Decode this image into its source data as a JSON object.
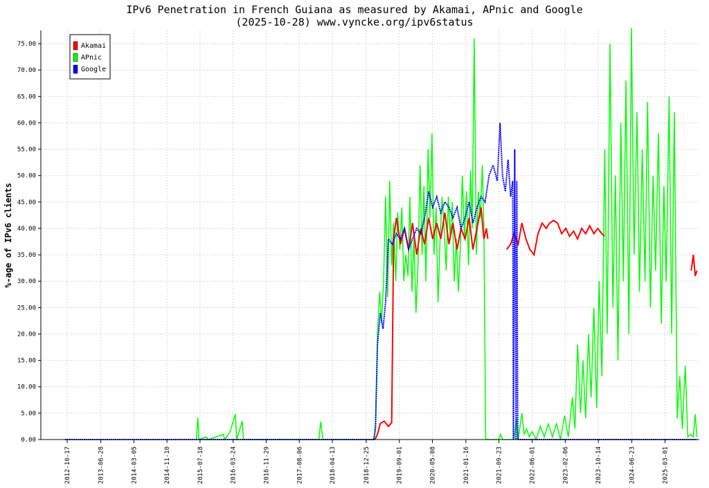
{
  "chart_data": {
    "type": "line",
    "title": "IPv6 Penetration in French Guiana as measured by Akamai, APnic and Google",
    "subtitle": "(2025-10-28) www.vyncke.org/ipv6status",
    "ylabel": "%-age of IPv6 clients",
    "xlabel": "",
    "ylim": [
      0,
      77.5
    ],
    "xlim": [
      "2012-04-01",
      "2025-11-15"
    ],
    "grid": true,
    "legend_position": "top-left",
    "y_ticks": [
      "0.00",
      "5.00",
      "10.00",
      "15.00",
      "20.00",
      "25.00",
      "30.00",
      "35.00",
      "40.00",
      "45.00",
      "50.00",
      "55.00",
      "60.00",
      "65.00",
      "70.00",
      "75.00"
    ],
    "x_ticks": [
      "2012-10-17",
      "2013-06-28",
      "2014-03-05",
      "2014-11-10",
      "2015-07-18",
      "2016-03-24",
      "2016-11-29",
      "2017-08-06",
      "2018-04-13",
      "2018-12-25",
      "2019-09-01",
      "2020-05-08",
      "2021-01-16",
      "2021-09-23",
      "2022-06-01",
      "2023-02-06",
      "2023-10-14",
      "2024-06-23",
      "2025-03-01"
    ],
    "series": [
      {
        "name": "Akamai",
        "color": "#ff0000",
        "points": [
          [
            "2019-03-01",
            0.0
          ],
          [
            "2019-03-20",
            1.0
          ],
          [
            "2019-04-10",
            3.0
          ],
          [
            "2019-05-10",
            3.5
          ],
          [
            "2019-06-10",
            2.5
          ],
          [
            "2019-07-05",
            3.2
          ],
          [
            "2019-07-20",
            38.0
          ],
          [
            "2019-08-10",
            42.0
          ],
          [
            "2019-09-10",
            37.0
          ],
          [
            "2019-10-10",
            40.0
          ],
          [
            "2019-11-10",
            36.0
          ],
          [
            "2019-12-10",
            41.0
          ],
          [
            "2020-01-10",
            35.0
          ],
          [
            "2020-02-10",
            40.0
          ],
          [
            "2020-03-10",
            37.0
          ],
          [
            "2020-04-10",
            42.0
          ],
          [
            "2020-05-10",
            38.0
          ],
          [
            "2020-06-10",
            41.0
          ],
          [
            "2020-07-10",
            38.0
          ],
          [
            "2020-08-10",
            43.0
          ],
          [
            "2020-09-10",
            37.0
          ],
          [
            "2020-10-10",
            41.0
          ],
          [
            "2020-11-10",
            36.0
          ],
          [
            "2020-12-10",
            40.0
          ],
          [
            "2021-01-10",
            38.0
          ],
          [
            "2021-02-10",
            42.0
          ],
          [
            "2021-03-10",
            36.0
          ],
          [
            "2021-04-10",
            40.0
          ],
          [
            "2021-05-10",
            44.0
          ],
          [
            "2021-06-01",
            38.0
          ],
          [
            "2021-06-20",
            40.0
          ],
          [
            "2021-07-01",
            38.0
          ],
          [
            "2021-11-20",
            36.0
          ],
          [
            "2021-12-20",
            37.0
          ],
          [
            "2022-01-15",
            39.0
          ],
          [
            "2022-02-15",
            37.0
          ],
          [
            "2022-03-15",
            41.0
          ],
          [
            "2022-04-15",
            38.0
          ],
          [
            "2022-05-15",
            36.0
          ],
          [
            "2022-06-15",
            35.0
          ],
          [
            "2022-07-15",
            39.0
          ],
          [
            "2022-08-15",
            41.0
          ],
          [
            "2022-09-15",
            40.0
          ],
          [
            "2022-10-10",
            41.0
          ],
          [
            "2022-11-10",
            41.5
          ],
          [
            "2022-12-10",
            41.0
          ],
          [
            "2023-01-10",
            39.0
          ],
          [
            "2023-02-10",
            40.0
          ],
          [
            "2023-03-10",
            38.5
          ],
          [
            "2023-04-10",
            39.5
          ],
          [
            "2023-05-10",
            38.0
          ],
          [
            "2023-06-10",
            40.0
          ],
          [
            "2023-07-10",
            39.0
          ],
          [
            "2023-08-10",
            40.5
          ],
          [
            "2023-09-10",
            39.0
          ],
          [
            "2023-10-10",
            40.0
          ],
          [
            "2023-11-10",
            39.0
          ],
          [
            "2023-11-30",
            38.5
          ],
          [
            "2025-09-15",
            32.0
          ],
          [
            "2025-10-01",
            35.0
          ],
          [
            "2025-10-15",
            31.0
          ],
          [
            "2025-10-28",
            32.0
          ]
        ]
      },
      {
        "name": "APnic",
        "color": "#00ff00",
        "points": [
          [
            "2015-06-20",
            0.0
          ],
          [
            "2015-07-01",
            4.2
          ],
          [
            "2015-07-10",
            0.0
          ],
          [
            "2015-09-01",
            0.5
          ],
          [
            "2015-09-20",
            0.0
          ],
          [
            "2016-01-10",
            1.0
          ],
          [
            "2016-01-20",
            0.0
          ],
          [
            "2016-03-01",
            1.5
          ],
          [
            "2016-04-10",
            4.8
          ],
          [
            "2016-04-20",
            0.0
          ],
          [
            "2016-06-01",
            3.5
          ],
          [
            "2016-06-10",
            0.0
          ],
          [
            "2018-01-01",
            0.0
          ],
          [
            "2018-01-15",
            3.4
          ],
          [
            "2018-02-01",
            0.0
          ],
          [
            "2019-02-20",
            0.0
          ],
          [
            "2019-03-05",
            3.0
          ],
          [
            "2019-03-20",
            20.0
          ],
          [
            "2019-04-05",
            28.0
          ],
          [
            "2019-04-20",
            22.0
          ],
          [
            "2019-05-05",
            30.0
          ],
          [
            "2019-05-20",
            46.0
          ],
          [
            "2019-06-05",
            27.0
          ],
          [
            "2019-06-20",
            49.0
          ],
          [
            "2019-07-05",
            33.0
          ],
          [
            "2019-07-20",
            41.0
          ],
          [
            "2019-08-05",
            30.0
          ],
          [
            "2019-08-20",
            43.0
          ],
          [
            "2019-09-05",
            36.0
          ],
          [
            "2019-09-20",
            44.0
          ],
          [
            "2019-10-05",
            30.0
          ],
          [
            "2019-10-20",
            35.0
          ],
          [
            "2019-11-05",
            31.0
          ],
          [
            "2019-11-20",
            46.0
          ],
          [
            "2019-12-05",
            28.0
          ],
          [
            "2019-12-20",
            38.0
          ],
          [
            "2020-01-05",
            24.0
          ],
          [
            "2020-01-20",
            33.0
          ],
          [
            "2020-02-05",
            52.0
          ],
          [
            "2020-02-20",
            35.0
          ],
          [
            "2020-03-05",
            48.0
          ],
          [
            "2020-03-20",
            30.0
          ],
          [
            "2020-04-05",
            55.0
          ],
          [
            "2020-04-20",
            42.0
          ],
          [
            "2020-05-05",
            58.0
          ],
          [
            "2020-05-20",
            35.0
          ],
          [
            "2020-06-05",
            44.0
          ],
          [
            "2020-06-20",
            26.0
          ],
          [
            "2020-07-05",
            38.0
          ],
          [
            "2020-07-20",
            46.0
          ],
          [
            "2020-08-05",
            40.0
          ],
          [
            "2020-08-20",
            32.0
          ],
          [
            "2020-09-05",
            46.0
          ],
          [
            "2020-09-20",
            38.0
          ],
          [
            "2020-10-05",
            45.0
          ],
          [
            "2020-10-20",
            30.0
          ],
          [
            "2020-11-05",
            38.0
          ],
          [
            "2020-11-20",
            28.0
          ],
          [
            "2020-12-05",
            36.0
          ],
          [
            "2020-12-20",
            50.0
          ],
          [
            "2021-01-05",
            38.0
          ],
          [
            "2021-01-20",
            47.0
          ],
          [
            "2021-02-05",
            33.0
          ],
          [
            "2021-02-20",
            51.0
          ],
          [
            "2021-03-05",
            40.0
          ],
          [
            "2021-03-20",
            76.0
          ],
          [
            "2021-04-05",
            35.0
          ],
          [
            "2021-04-20",
            47.0
          ],
          [
            "2021-05-05",
            42.0
          ],
          [
            "2021-05-20",
            52.0
          ],
          [
            "2021-06-01",
            40.0
          ],
          [
            "2021-06-15",
            0.0
          ],
          [
            "2021-09-20",
            0.0
          ],
          [
            "2021-10-05",
            1.0
          ],
          [
            "2021-10-20",
            0.0
          ],
          [
            "2022-01-15",
            0.0
          ],
          [
            "2022-02-01",
            4.0
          ],
          [
            "2022-02-15",
            0.0
          ],
          [
            "2022-03-15",
            5.0
          ],
          [
            "2022-04-01",
            1.0
          ],
          [
            "2022-04-20",
            2.0
          ],
          [
            "2022-05-10",
            0.5
          ],
          [
            "2022-06-01",
            1.5
          ],
          [
            "2022-07-01",
            0.0
          ],
          [
            "2022-08-01",
            2.5
          ],
          [
            "2022-09-01",
            0.5
          ],
          [
            "2022-10-01",
            3.0
          ],
          [
            "2022-11-01",
            0.5
          ],
          [
            "2022-12-01",
            3.0
          ],
          [
            "2023-01-01",
            0.0
          ],
          [
            "2023-02-01",
            4.5
          ],
          [
            "2023-03-01",
            0.5
          ],
          [
            "2023-04-01",
            8.0
          ],
          [
            "2023-04-20",
            2.0
          ],
          [
            "2023-05-10",
            18.0
          ],
          [
            "2023-06-01",
            5.0
          ],
          [
            "2023-06-20",
            15.0
          ],
          [
            "2023-07-10",
            4.0
          ],
          [
            "2023-08-01",
            20.0
          ],
          [
            "2023-08-20",
            8.0
          ],
          [
            "2023-09-10",
            25.0
          ],
          [
            "2023-10-01",
            6.0
          ],
          [
            "2023-10-20",
            30.0
          ],
          [
            "2023-11-10",
            12.0
          ],
          [
            "2023-12-01",
            55.0
          ],
          [
            "2023-12-20",
            20.0
          ],
          [
            "2024-01-10",
            75.0
          ],
          [
            "2024-02-01",
            25.0
          ],
          [
            "2024-02-20",
            50.0
          ],
          [
            "2024-03-10",
            15.0
          ],
          [
            "2024-04-01",
            60.0
          ],
          [
            "2024-04-20",
            30.0
          ],
          [
            "2024-05-10",
            68.0
          ],
          [
            "2024-06-01",
            20.0
          ],
          [
            "2024-06-20",
            78.0
          ],
          [
            "2024-07-10",
            35.0
          ],
          [
            "2024-08-01",
            62.0
          ],
          [
            "2024-08-20",
            28.0
          ],
          [
            "2024-09-10",
            55.0
          ],
          [
            "2024-10-01",
            30.0
          ],
          [
            "2024-10-20",
            64.0
          ],
          [
            "2024-11-10",
            25.0
          ],
          [
            "2024-12-01",
            50.0
          ],
          [
            "2024-12-20",
            32.0
          ],
          [
            "2025-01-10",
            58.0
          ],
          [
            "2025-02-01",
            22.0
          ],
          [
            "2025-02-20",
            48.0
          ],
          [
            "2025-03-10",
            30.0
          ],
          [
            "2025-04-01",
            65.0
          ],
          [
            "2025-04-20",
            20.0
          ],
          [
            "2025-05-10",
            62.0
          ],
          [
            "2025-06-01",
            4.0
          ],
          [
            "2025-06-20",
            12.0
          ],
          [
            "2025-07-10",
            2.0
          ],
          [
            "2025-08-01",
            14.0
          ],
          [
            "2025-08-20",
            0.5
          ],
          [
            "2025-09-10",
            1.0
          ],
          [
            "2025-10-01",
            0.5
          ],
          [
            "2025-10-15",
            4.8
          ],
          [
            "2025-10-28",
            0.5
          ]
        ]
      },
      {
        "name": "Google",
        "color": "#0000ff",
        "points": [
          [
            "2012-10-01",
            0.0
          ],
          [
            "2019-02-20",
            0.0
          ],
          [
            "2019-03-05",
            2.0
          ],
          [
            "2019-03-20",
            18.0
          ],
          [
            "2019-04-10",
            24.0
          ],
          [
            "2019-05-01",
            21.0
          ],
          [
            "2019-05-20",
            26.0
          ],
          [
            "2019-06-10",
            38.0
          ],
          [
            "2019-07-10",
            37.0
          ],
          [
            "2019-08-10",
            39.0
          ],
          [
            "2019-09-10",
            38.0
          ],
          [
            "2019-10-10",
            40.0
          ],
          [
            "2019-11-10",
            36.0
          ],
          [
            "2019-12-10",
            38.0
          ],
          [
            "2020-01-10",
            40.0
          ],
          [
            "2020-02-10",
            39.0
          ],
          [
            "2020-03-10",
            42.0
          ],
          [
            "2020-04-10",
            47.0
          ],
          [
            "2020-05-10",
            44.0
          ],
          [
            "2020-06-10",
            46.0
          ],
          [
            "2020-07-10",
            43.0
          ],
          [
            "2020-08-10",
            45.0
          ],
          [
            "2020-09-10",
            44.0
          ],
          [
            "2020-10-10",
            42.0
          ],
          [
            "2020-11-10",
            44.0
          ],
          [
            "2020-12-10",
            40.0
          ],
          [
            "2021-01-10",
            42.0
          ],
          [
            "2021-02-10",
            45.0
          ],
          [
            "2021-03-10",
            41.0
          ],
          [
            "2021-04-10",
            44.0
          ],
          [
            "2021-05-10",
            46.0
          ],
          [
            "2021-06-10",
            45.0
          ],
          [
            "2021-07-10",
            50.0
          ],
          [
            "2021-08-10",
            52.0
          ],
          [
            "2021-09-10",
            49.0
          ],
          [
            "2021-10-01",
            60.0
          ],
          [
            "2021-10-20",
            50.0
          ],
          [
            "2021-11-10",
            47.0
          ],
          [
            "2021-12-01",
            53.0
          ],
          [
            "2021-12-20",
            46.0
          ],
          [
            "2022-01-05",
            49.0
          ],
          [
            "2022-01-10",
            0.0
          ],
          [
            "2022-01-20",
            55.0
          ],
          [
            "2022-01-30",
            0.0
          ],
          [
            "2022-02-05",
            49.0
          ],
          [
            "2022-02-12",
            0.0
          ],
          [
            "2022-02-20",
            0.0
          ],
          [
            "2025-10-28",
            0.0
          ]
        ]
      }
    ]
  },
  "legend": {
    "items": [
      {
        "label": "Akamai",
        "color": "#ff0000"
      },
      {
        "label": "APnic",
        "color": "#00ff00"
      },
      {
        "label": "Google",
        "color": "#0000ff"
      }
    ]
  }
}
